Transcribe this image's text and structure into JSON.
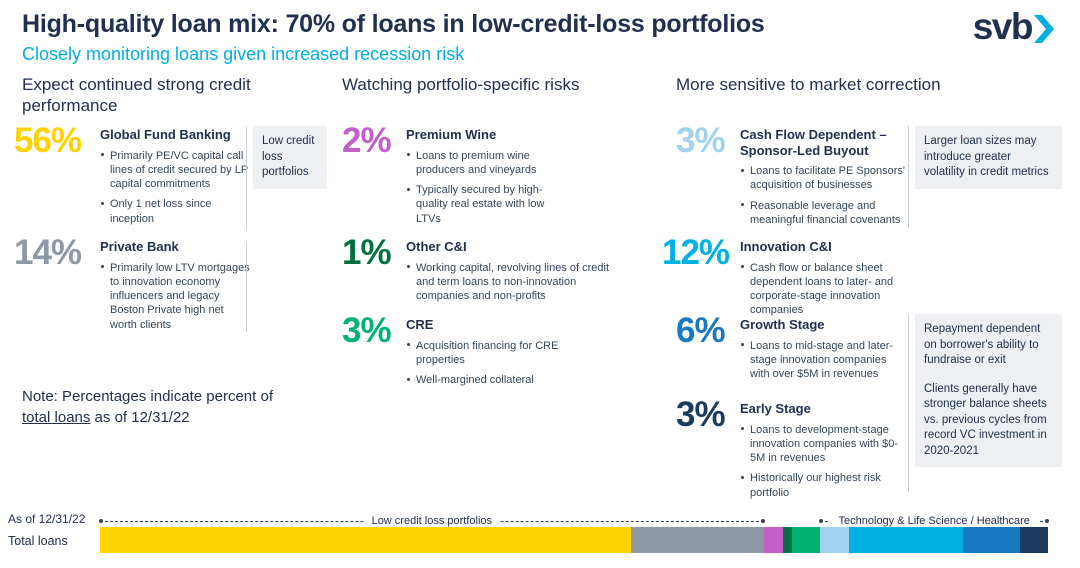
{
  "header": {
    "title": "High-quality loan mix: 70% of loans in low-credit-loss portfolios",
    "subtitle": "Closely monitoring loans given increased recession risk",
    "logo_text": "svb"
  },
  "colors": {
    "navy_text": "#22304f",
    "accent_cyan": "#00aee0",
    "box_bg": "#edeff2"
  },
  "columns": [
    {
      "header": "Expect continued strong credit performance",
      "side_box": "Low credit loss portfolios",
      "items": [
        {
          "pct": "56%",
          "color": "#ffd200",
          "title": "Global Fund Banking",
          "bullets": [
            "Primarily PE/VC capital call lines of credit secured by LP capital commitments",
            "Only 1 net loss since inception"
          ]
        },
        {
          "pct": "14%",
          "color": "#8e99a5",
          "title": "Private Bank",
          "bullets": [
            "Primarily low LTV mortgages to innovation economy influencers and legacy Boston Private high net worth clients"
          ]
        }
      ]
    },
    {
      "header": "Watching portfolio-specific risks",
      "items": [
        {
          "pct": "2%",
          "color": "#c35fc9",
          "title": "Premium Wine",
          "bullets": [
            "Loans to premium wine producers and vineyards",
            "Typically secured by high-quality real estate with low LTVs"
          ]
        },
        {
          "pct": "1%",
          "color": "#00713d",
          "title": "Other C&I",
          "bullets": [
            "Working capital, revolving lines of credit and term loans to non-innovation companies and non-profits"
          ]
        },
        {
          "pct": "3%",
          "color": "#00b273",
          "title": "CRE",
          "bullets": [
            "Acquisition financing for CRE properties",
            "Well-margined collateral"
          ]
        }
      ]
    },
    {
      "header": "More sensitive to market correction",
      "side_box_top": "Larger loan sizes may introduce greater volatility in credit metrics",
      "side_box_bottom": [
        "Repayment dependent on borrower's ability to fundraise or exit",
        "Clients generally have stronger balance sheets vs. previous cycles from record VC investment in 2020-2021"
      ],
      "items": [
        {
          "pct": "3%",
          "color": "#9fd3ee",
          "title": "Cash Flow Dependent – Sponsor-Led Buyout",
          "bullets": [
            "Loans to facilitate PE Sponsors' acquisition of businesses",
            "Reasonable leverage and meaningful financial covenants"
          ]
        },
        {
          "pct": "12%",
          "color": "#00b1e3",
          "title": "Innovation C&I",
          "bullets": [
            "Cash flow or balance sheet dependent loans to later- and corporate-stage innovation companies"
          ]
        },
        {
          "pct": "6%",
          "color": "#1779c0",
          "title": "Growth Stage",
          "bullets": [
            "Loans to mid-stage and later-stage innovation companies with over $5M in revenues"
          ]
        },
        {
          "pct": "3%",
          "color": "#1a3a5f",
          "title": "Early Stage",
          "bullets": [
            "Loans to development-stage innovation companies with $0-5M in revenues",
            "Historically our highest risk portfolio"
          ]
        }
      ]
    }
  ],
  "note": {
    "prefix": "Note: Percentages indicate percent of ",
    "underline": "total loans",
    "suffix": " as of 12/31/22"
  },
  "footer": {
    "as_of": "As of 12/31/22",
    "row_label": "Total loans"
  },
  "chart_data": {
    "type": "bar",
    "stacked": true,
    "orientation": "horizontal",
    "title": "Total loans as of 12/31/22 (% of total loans)",
    "categories": [
      "Global Fund Banking",
      "Private Bank",
      "Premium Wine",
      "Other C&I",
      "CRE",
      "Cash Flow Dependent – Sponsor-Led Buyout",
      "Innovation C&I",
      "Growth Stage",
      "Early Stage"
    ],
    "values": [
      56,
      14,
      2,
      1,
      3,
      3,
      12,
      6,
      3
    ],
    "colors": [
      "#ffd200",
      "#8e99a5",
      "#c35fc9",
      "#00713d",
      "#00b273",
      "#9fd3ee",
      "#00b1e3",
      "#1779c0",
      "#1a3a5f"
    ],
    "xlim": [
      0,
      100
    ],
    "groups": [
      {
        "label": "Low credit loss portfolios",
        "span_pct": [
          0,
          70
        ]
      },
      {
        "label": "Technology & Life Science / Healthcare",
        "span_pct": [
          76,
          100
        ]
      }
    ]
  }
}
